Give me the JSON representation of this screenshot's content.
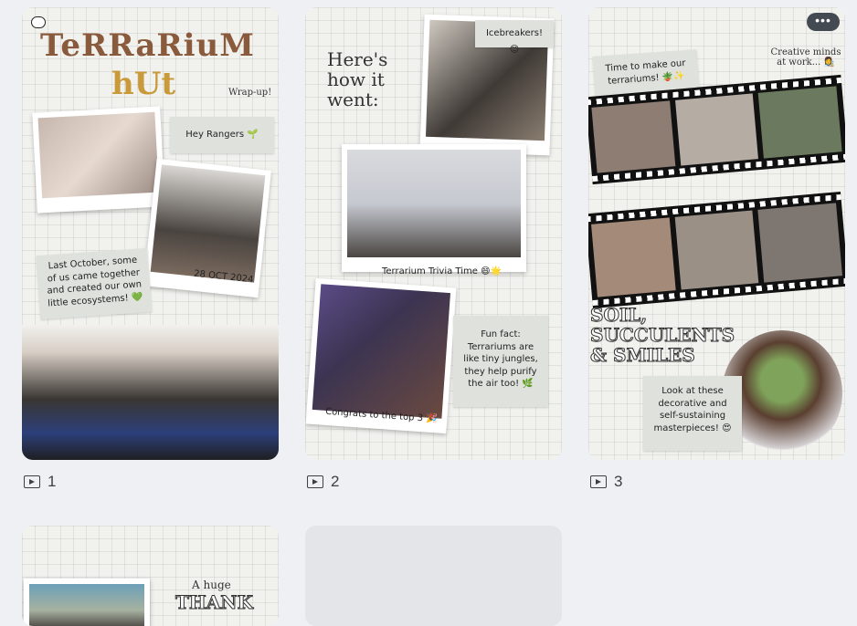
{
  "pages": [
    {
      "number": "1",
      "title_line1": "TeRRaRiuM",
      "title_line2": "hUt",
      "wrap_up": "Wrap-up!",
      "hey_rangers": "Hey Rangers 🌱",
      "date": "28 OCT 2024",
      "story": "Last October, some of us came together and created our own little ecosystems! 💚"
    },
    {
      "number": "2",
      "heres_how": "Here's how it went:",
      "icebreakers": "Icebreakers! 😊",
      "trivia": "Terrarium Trivia Time 😄🌟",
      "congrats": "Congrats to the top 3 🎉",
      "fun_fact": "Fun fact: Terrariums are like tiny jungles, they help purify the air too! 🌿"
    },
    {
      "number": "3",
      "time_to_make": "Time to make our terrariums! 🪴✨",
      "creative": "Creative minds at work... 👩‍🎨",
      "soil": "SOIL, SUCCULENTS & SMILES",
      "look": "Look at these decorative and self-sustaining masterpieces! 😍"
    },
    {
      "huge": "A huge",
      "thank": "THANK"
    }
  ],
  "more_label": "•••",
  "icons": [
    "comment-icon",
    "play-icon",
    "more-icon"
  ]
}
